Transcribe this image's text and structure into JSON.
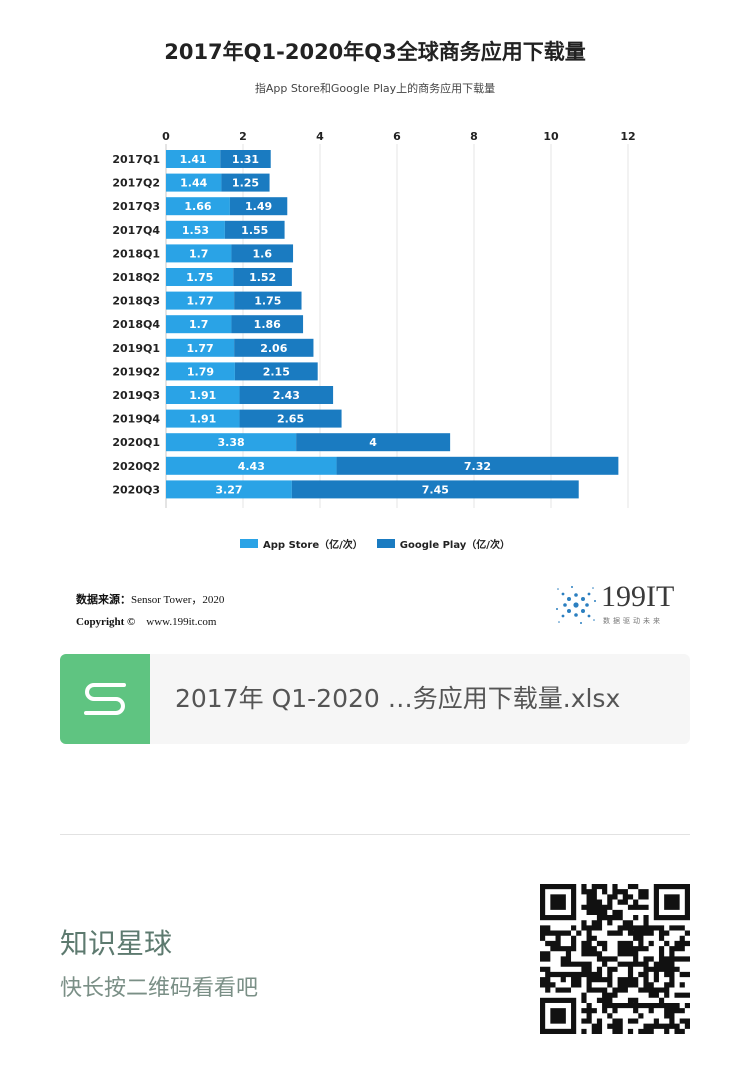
{
  "chart_data": {
    "type": "bar",
    "orientation": "horizontal",
    "stacked": true,
    "title": "2017年Q1-2020年Q3全球商务应用下载量",
    "subtitle": "指App Store和Google Play上的商务应用下载量",
    "categories": [
      "2017Q1",
      "2017Q2",
      "2017Q3",
      "2017Q4",
      "2018Q1",
      "2018Q2",
      "2018Q3",
      "2018Q4",
      "2019Q1",
      "2019Q2",
      "2019Q3",
      "2019Q4",
      "2020Q1",
      "2020Q2",
      "2020Q3"
    ],
    "series": [
      {
        "name": "App Store（亿/次）",
        "color": "#2aa3e6",
        "values": [
          1.41,
          1.44,
          1.66,
          1.53,
          1.7,
          1.75,
          1.77,
          1.7,
          1.77,
          1.79,
          1.91,
          1.91,
          3.38,
          4.43,
          3.27
        ]
      },
      {
        "name": "Google Play（亿/次）",
        "color": "#1a7bc1",
        "values": [
          1.31,
          1.25,
          1.49,
          1.55,
          1.6,
          1.52,
          1.75,
          1.86,
          2.06,
          2.15,
          2.43,
          2.65,
          4,
          7.32,
          7.45
        ]
      }
    ],
    "xlim": [
      0,
      12
    ],
    "xticks": [
      0,
      2,
      4,
      6,
      8,
      10,
      12
    ],
    "grid": true,
    "legend_position": "bottom"
  },
  "source": {
    "label": "数据来源：",
    "value": "Sensor Tower，2020",
    "copyright_label": "Copyright ©",
    "website": "www.199it.com"
  },
  "logo": {
    "text": "199IT",
    "tagline": "数据驱动未来"
  },
  "file": {
    "icon_letter": "S",
    "name": "2017年 Q1-2020 …务应用下载量.xlsx"
  },
  "promo": {
    "title": "知识星球",
    "subtitle": "快长按二维码看看吧"
  }
}
